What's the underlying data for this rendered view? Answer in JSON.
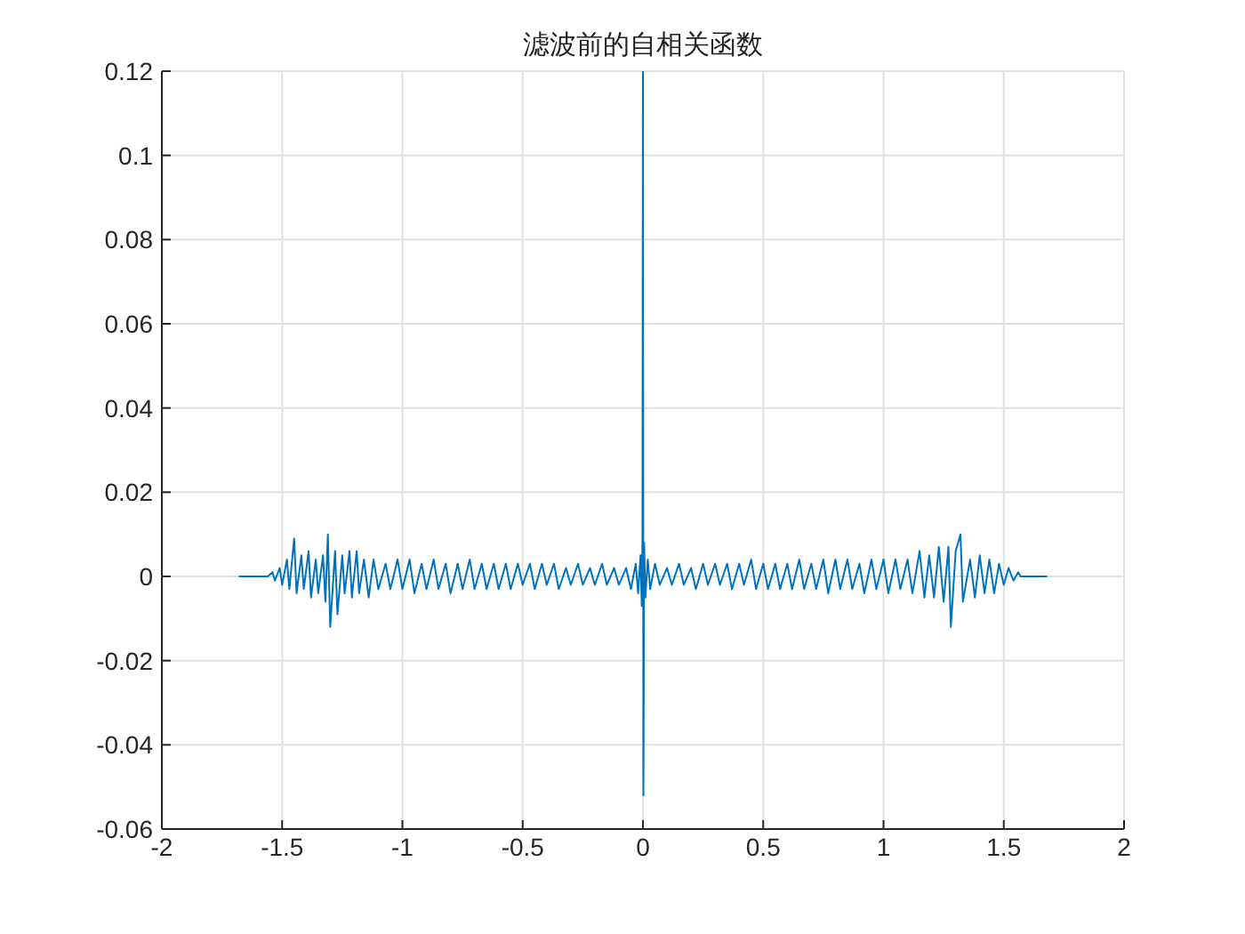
{
  "chart_data": {
    "type": "line",
    "title": "滤波前的自相关函数",
    "x": [
      -1.68,
      -1.56,
      -1.54,
      -1.53,
      -1.51,
      -1.5,
      -1.48,
      -1.47,
      -1.45,
      -1.44,
      -1.42,
      -1.41,
      -1.39,
      -1.38,
      -1.36,
      -1.35,
      -1.33,
      -1.32,
      -1.31,
      -1.3,
      -1.28,
      -1.27,
      -1.25,
      -1.24,
      -1.22,
      -1.21,
      -1.19,
      -1.18,
      -1.16,
      -1.14,
      -1.12,
      -1.1,
      -1.07,
      -1.05,
      -1.02,
      -1,
      -0.97,
      -0.95,
      -0.92,
      -0.9,
      -0.87,
      -0.85,
      -0.82,
      -0.8,
      -0.77,
      -0.75,
      -0.72,
      -0.7,
      -0.67,
      -0.65,
      -0.62,
      -0.6,
      -0.57,
      -0.55,
      -0.52,
      -0.5,
      -0.47,
      -0.45,
      -0.42,
      -0.4,
      -0.37,
      -0.35,
      -0.32,
      -0.3,
      -0.27,
      -0.25,
      -0.22,
      -0.2,
      -0.17,
      -0.15,
      -0.12,
      -0.1,
      -0.07,
      -0.05,
      -0.03,
      -0.02,
      -0.01,
      -0.005,
      -0.002,
      0,
      0.002,
      0.005,
      0.01,
      0.02,
      0.03,
      0.05,
      0.07,
      0.1,
      0.12,
      0.15,
      0.17,
      0.2,
      0.22,
      0.25,
      0.27,
      0.3,
      0.32,
      0.35,
      0.37,
      0.4,
      0.42,
      0.45,
      0.47,
      0.5,
      0.52,
      0.55,
      0.57,
      0.6,
      0.62,
      0.65,
      0.67,
      0.7,
      0.72,
      0.75,
      0.77,
      0.8,
      0.82,
      0.85,
      0.87,
      0.9,
      0.92,
      0.95,
      0.97,
      1,
      1.02,
      1.05,
      1.07,
      1.1,
      1.12,
      1.15,
      1.17,
      1.19,
      1.21,
      1.23,
      1.25,
      1.27,
      1.28,
      1.3,
      1.32,
      1.33,
      1.36,
      1.38,
      1.4,
      1.42,
      1.44,
      1.46,
      1.48,
      1.5,
      1.52,
      1.54,
      1.56,
      1.57,
      1.68
    ],
    "series": [
      {
        "color": "#0072bd",
        "values": [
          0,
          0,
          0.001,
          -0.001,
          0.002,
          -0.002,
          0.004,
          -0.003,
          0.009,
          -0.004,
          0.005,
          -0.003,
          0.006,
          -0.005,
          0.004,
          -0.004,
          0.005,
          -0.006,
          0.01,
          -0.012,
          0.006,
          -0.009,
          0.005,
          -0.004,
          0.006,
          -0.005,
          0.006,
          -0.004,
          0.004,
          -0.005,
          0.004,
          -0.003,
          0.003,
          -0.003,
          0.004,
          -0.003,
          0.004,
          -0.004,
          0.003,
          -0.003,
          0.004,
          -0.003,
          0.003,
          -0.004,
          0.003,
          -0.003,
          0.004,
          -0.003,
          0.003,
          -0.003,
          0.003,
          -0.003,
          0.003,
          -0.003,
          0.003,
          -0.002,
          0.003,
          -0.003,
          0.003,
          -0.002,
          0.003,
          -0.003,
          0.002,
          -0.002,
          0.003,
          -0.002,
          0.002,
          -0.002,
          0.003,
          -0.002,
          0.002,
          -0.002,
          0.002,
          -0.003,
          0.003,
          -0.004,
          0.005,
          -0.007,
          0.01,
          0.12,
          -0.052,
          0.008,
          -0.005,
          0.004,
          -0.003,
          0.003,
          -0.002,
          0.002,
          -0.002,
          0.003,
          -0.002,
          0.002,
          -0.003,
          0.003,
          -0.002,
          0.003,
          -0.002,
          0.003,
          -0.003,
          0.003,
          -0.002,
          0.004,
          -0.003,
          0.003,
          -0.003,
          0.003,
          -0.003,
          0.003,
          -0.003,
          0.004,
          -0.003,
          0.003,
          -0.003,
          0.004,
          -0.004,
          0.004,
          -0.003,
          0.004,
          -0.003,
          0.003,
          -0.004,
          0.004,
          -0.003,
          0.004,
          -0.004,
          0.004,
          -0.003,
          0.004,
          -0.004,
          0.006,
          -0.005,
          0.005,
          -0.005,
          0.007,
          -0.006,
          0.007,
          -0.012,
          0.006,
          0.01,
          -0.006,
          0.004,
          -0.005,
          0.005,
          -0.004,
          0.004,
          -0.004,
          0.003,
          -0.002,
          0.002,
          -0.001,
          0.001,
          0,
          0
        ]
      }
    ],
    "xlim": [
      -2,
      2
    ],
    "xticks": [
      -2,
      -1.5,
      -1,
      -0.5,
      0,
      0.5,
      1,
      1.5,
      2
    ],
    "ylim": [
      -0.06,
      0.12
    ],
    "yticks": [
      -0.06,
      -0.04,
      -0.02,
      0,
      0.02,
      0.04,
      0.06,
      0.08,
      0.1,
      0.12
    ],
    "grid": true,
    "legend": false,
    "marker": "none",
    "line_style": "solid"
  }
}
